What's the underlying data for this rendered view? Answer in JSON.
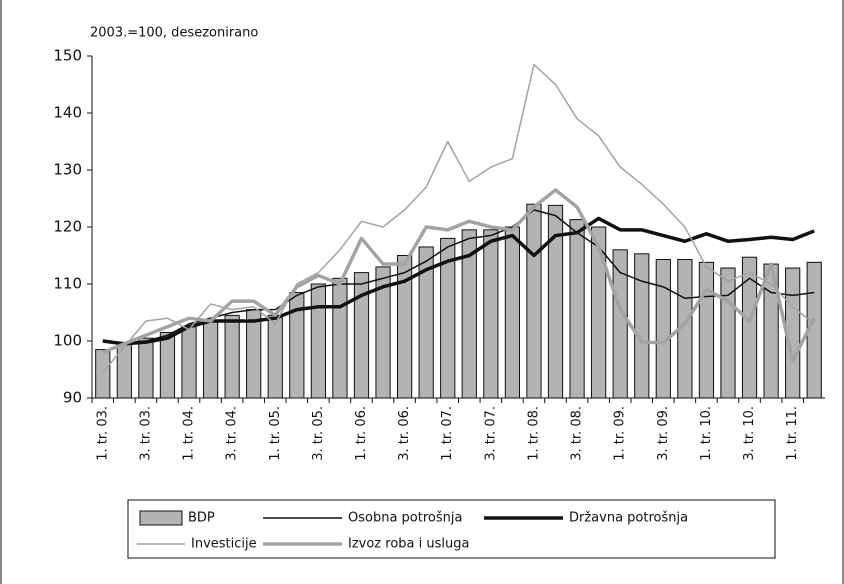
{
  "chart_data": {
    "type": "bar",
    "subtitle": "2003.=100, desezonirano",
    "categories": [
      "1. tr. 03.",
      null,
      "3. tr. 03.",
      null,
      "1. tr. 04.",
      null,
      "3. tr. 04.",
      null,
      "1. tr. 05.",
      null,
      "3. tr. 05.",
      null,
      "1. tr. 06.",
      null,
      "3. tr. 06.",
      null,
      "1. tr. 07.",
      null,
      "3. tr. 07.",
      null,
      "1. tr. 08.",
      null,
      "3. tr. 08.",
      null,
      "1. tr. 09.",
      null,
      "3. tr. 09.",
      null,
      "1. tr. 10.",
      null,
      "3. tr. 10.",
      null,
      "1. tr. 11.",
      null
    ],
    "ylim": [
      90,
      150
    ],
    "yticks": [
      90,
      100,
      110,
      120,
      130,
      140,
      150
    ],
    "grid": false,
    "series": [
      {
        "name": "BDP",
        "type": "bar",
        "color": "#b3b3b3",
        "values": [
          98.5,
          99.5,
          100.5,
          101.5,
          102.5,
          103.5,
          104.5,
          105.5,
          104.5,
          108.5,
          110,
          111,
          112,
          113,
          115,
          116.5,
          118,
          119.5,
          119.5,
          120,
          124,
          123.8,
          121.3,
          120,
          116,
          115.3,
          114.3,
          114.3,
          113.8,
          112.8,
          114.7,
          113.5,
          112.8,
          113.8
        ]
      },
      {
        "name": "Osobna potrošnja",
        "type": "line",
        "color": "#111111",
        "linewidth": 1.5,
        "values": [
          100,
          99.7,
          100,
          101,
          103,
          104,
          105,
          105.5,
          105.5,
          108,
          109.5,
          110,
          110,
          111,
          112,
          114,
          116.5,
          118,
          118.5,
          120,
          123,
          122,
          119,
          116.5,
          112,
          110.5,
          109.5,
          107.5,
          107.8,
          108,
          111,
          108.5,
          108,
          108.5
        ]
      },
      {
        "name": "Državna potrošnja",
        "type": "line",
        "color": "#111111",
        "linewidth": 3.5,
        "values": [
          100,
          99.5,
          99.8,
          100.5,
          102.5,
          103.5,
          103.5,
          103.5,
          104,
          105.5,
          106,
          106,
          108,
          109.5,
          110.5,
          112.5,
          114,
          115,
          117.5,
          118.5,
          115,
          118.5,
          119,
          121.5,
          119.5,
          119.5,
          118.5,
          117.5,
          118.8,
          117.5,
          117.8,
          118.2,
          117.8,
          119.3
        ]
      },
      {
        "name": "Investicije",
        "type": "line",
        "color": "#a3a3a3",
        "linewidth": 1.5,
        "values": [
          94.5,
          99,
          103.5,
          104,
          102,
          106.5,
          105.5,
          106,
          103,
          110,
          112,
          116,
          121,
          120,
          123,
          127,
          135,
          128,
          130.5,
          132,
          148.5,
          145,
          139,
          136,
          130.5,
          127.5,
          124,
          120,
          113,
          110.5,
          112,
          110,
          106,
          103
        ]
      },
      {
        "name": "Izvoz roba i usluga",
        "type": "line",
        "color": "#a3a3a3",
        "linewidth": 3.5,
        "values": [
          98,
          99.5,
          101,
          102.5,
          104,
          103.5,
          107,
          107,
          104.5,
          109.5,
          111.5,
          110,
          118,
          113.5,
          113.5,
          120,
          119.5,
          121,
          120,
          119.5,
          123.5,
          126.5,
          123.5,
          116.5,
          105.5,
          99.8,
          99.7,
          103,
          109,
          107,
          103.5,
          113.5,
          96.5,
          104
        ]
      }
    ]
  }
}
